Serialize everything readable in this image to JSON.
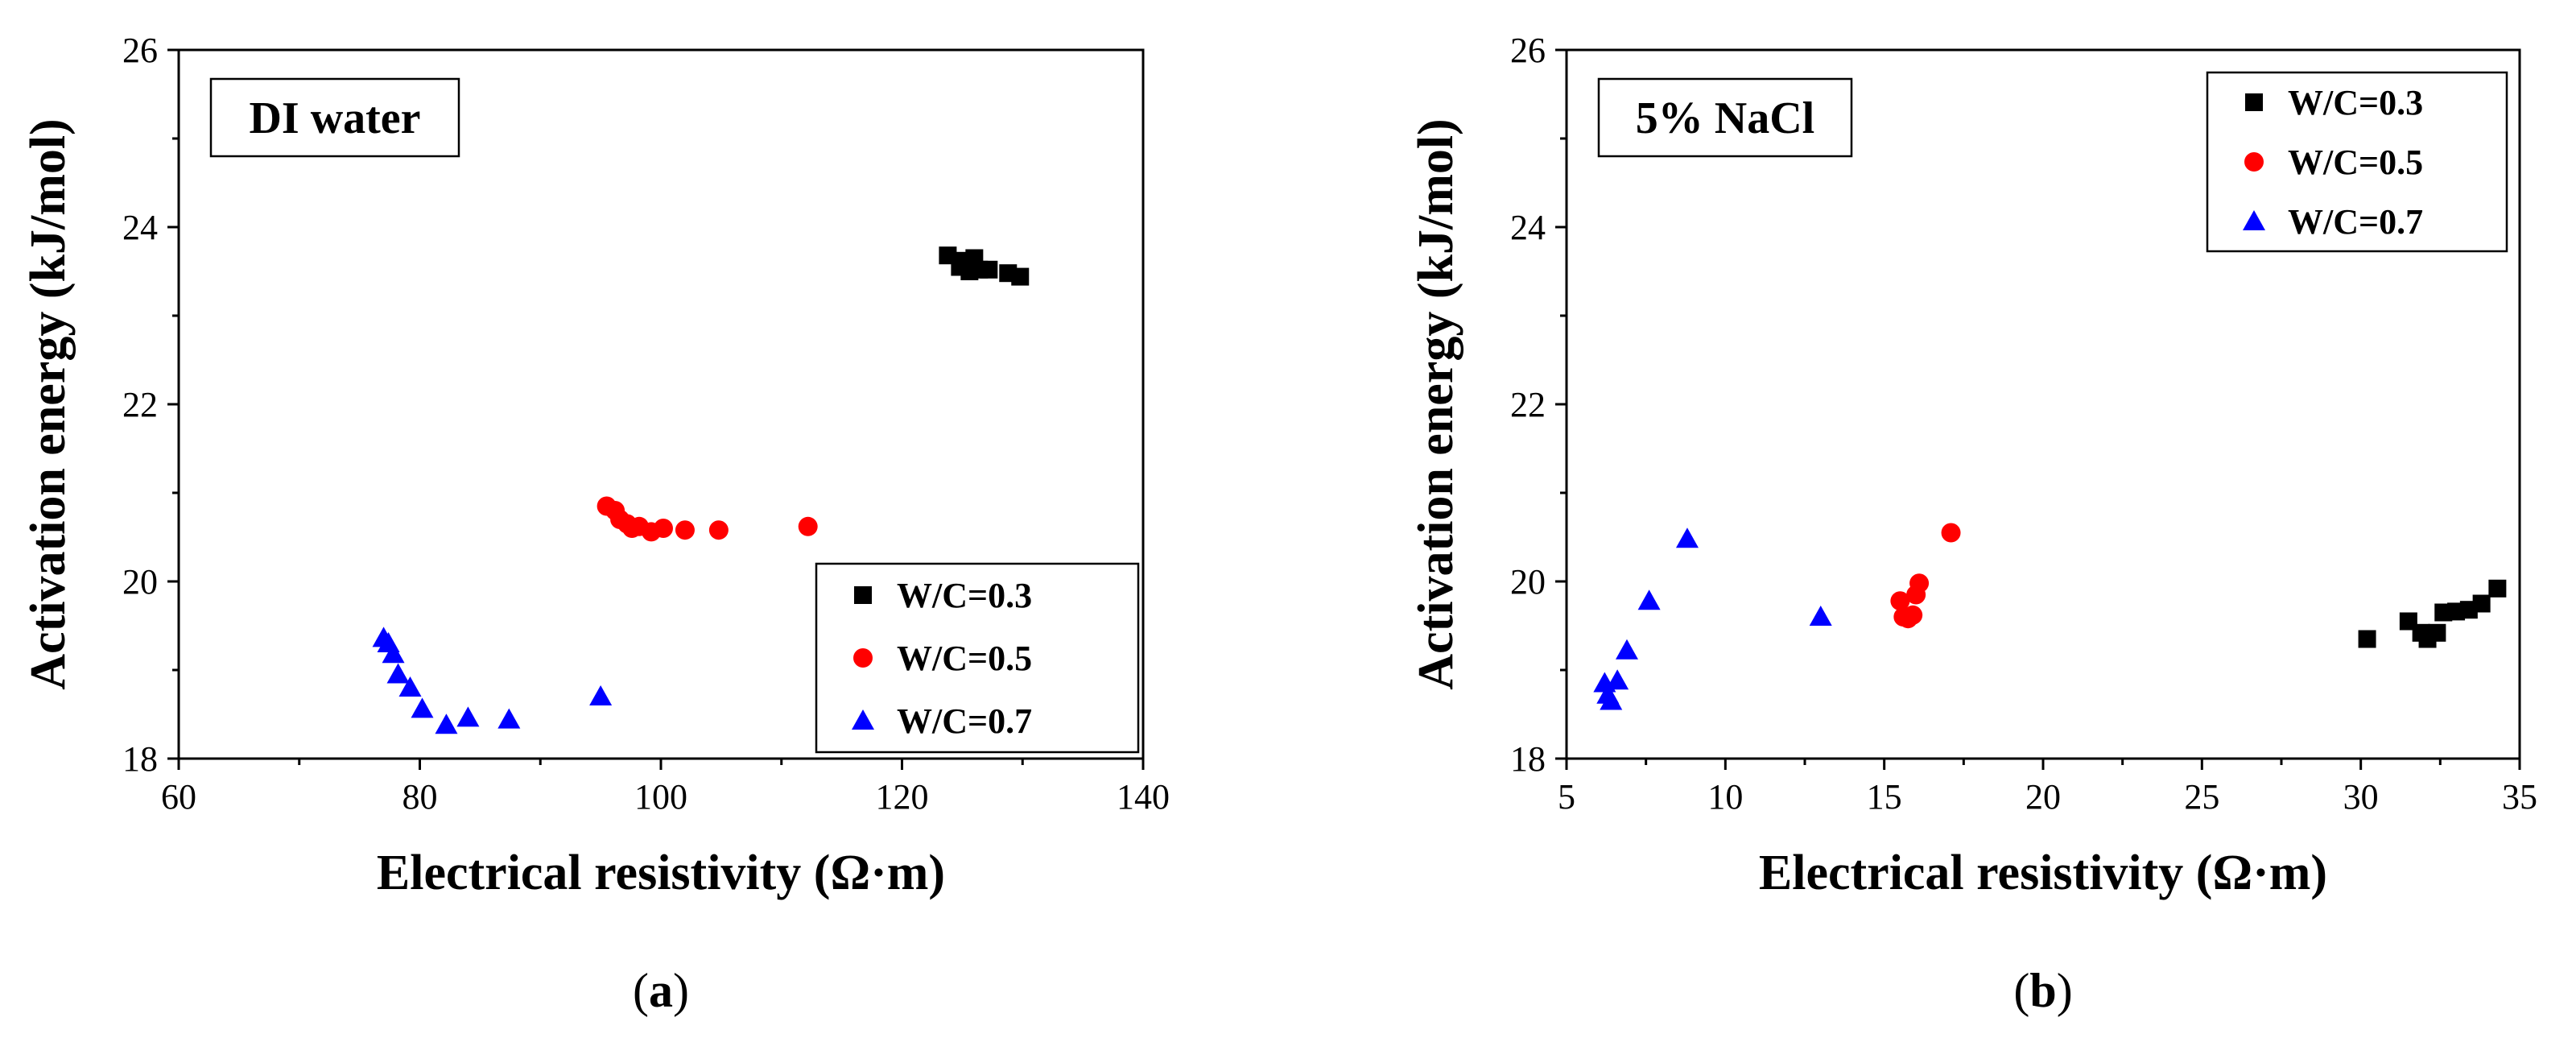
{
  "chart_data": [
    {
      "type": "scatter",
      "panel_tag": "DI water",
      "caption_letter": "a",
      "xlabel": "Electrical resistivity (Ω·m)",
      "ylabel": "Activation energy (kJ/mol)",
      "xlim": [
        60,
        140
      ],
      "ylim": [
        18,
        26
      ],
      "xticks": [
        60,
        80,
        100,
        120,
        140
      ],
      "yticks": [
        18,
        20,
        22,
        24,
        26
      ],
      "grid": false,
      "legend_position": "lower-right",
      "series": [
        {
          "name": "W/C=0.3",
          "marker": "square",
          "color": "#000000",
          "points": [
            [
              123.8,
              23.68
            ],
            [
              124.8,
              23.55
            ],
            [
              125.2,
              23.62
            ],
            [
              125.6,
              23.5
            ],
            [
              126.0,
              23.65
            ],
            [
              126.4,
              23.52
            ],
            [
              127.2,
              23.52
            ],
            [
              128.8,
              23.48
            ],
            [
              129.8,
              23.44
            ]
          ]
        },
        {
          "name": "W/C=0.5",
          "marker": "circle",
          "color": "#ff0000",
          "points": [
            [
              95.5,
              20.85
            ],
            [
              96.2,
              20.8
            ],
            [
              96.6,
              20.7
            ],
            [
              97.2,
              20.65
            ],
            [
              97.6,
              20.6
            ],
            [
              98.2,
              20.62
            ],
            [
              99.2,
              20.56
            ],
            [
              100.2,
              20.6
            ],
            [
              102.0,
              20.58
            ],
            [
              104.8,
              20.58
            ],
            [
              112.2,
              20.62
            ]
          ]
        },
        {
          "name": "W/C=0.7",
          "marker": "triangle",
          "color": "#0000ff",
          "points": [
            [
              77.0,
              19.36
            ],
            [
              77.4,
              19.3
            ],
            [
              77.8,
              19.18
            ],
            [
              78.2,
              18.95
            ],
            [
              79.2,
              18.8
            ],
            [
              80.2,
              18.56
            ],
            [
              82.2,
              18.38
            ],
            [
              84.0,
              18.46
            ],
            [
              87.4,
              18.44
            ],
            [
              95.0,
              18.7
            ]
          ]
        }
      ]
    },
    {
      "type": "scatter",
      "panel_tag": "5% NaCl",
      "caption_letter": "b",
      "xlabel": "Electrical resistivity (Ω·m)",
      "ylabel": "Activation energy (kJ/mol)",
      "xlim": [
        5,
        35
      ],
      "ylim": [
        18,
        26
      ],
      "xticks": [
        5,
        10,
        15,
        20,
        25,
        30,
        35
      ],
      "yticks": [
        18,
        20,
        22,
        24,
        26
      ],
      "grid": false,
      "legend_position": "upper-right",
      "series": [
        {
          "name": "W/C=0.3",
          "marker": "square",
          "color": "#000000",
          "points": [
            [
              30.2,
              19.35
            ],
            [
              31.5,
              19.55
            ],
            [
              31.9,
              19.42
            ],
            [
              32.1,
              19.35
            ],
            [
              32.4,
              19.42
            ],
            [
              32.6,
              19.65
            ],
            [
              33.0,
              19.66
            ],
            [
              33.4,
              19.68
            ],
            [
              33.8,
              19.75
            ],
            [
              34.3,
              19.92
            ]
          ]
        },
        {
          "name": "W/C=0.5",
          "marker": "circle",
          "color": "#ff0000",
          "points": [
            [
              15.5,
              19.78
            ],
            [
              15.6,
              19.6
            ],
            [
              15.75,
              19.58
            ],
            [
              15.9,
              19.62
            ],
            [
              16.0,
              19.85
            ],
            [
              16.1,
              19.98
            ],
            [
              17.1,
              20.55
            ]
          ]
        },
        {
          "name": "W/C=0.7",
          "marker": "triangle",
          "color": "#0000ff",
          "points": [
            [
              6.2,
              18.85
            ],
            [
              6.3,
              18.72
            ],
            [
              6.4,
              18.65
            ],
            [
              6.6,
              18.88
            ],
            [
              6.9,
              19.22
            ],
            [
              7.6,
              19.78
            ],
            [
              8.8,
              20.48
            ],
            [
              13.0,
              19.6
            ]
          ]
        }
      ]
    }
  ]
}
